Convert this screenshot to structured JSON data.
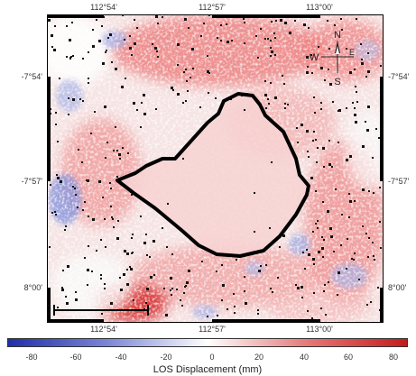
{
  "map": {
    "lon_labels": [
      "112°54'",
      "112°57'",
      "113°00'"
    ],
    "lat_labels": [
      "-7°54'",
      "-7°57'",
      "8°00'"
    ],
    "compass": {
      "n": "N",
      "s": "S",
      "e": "E",
      "w": "W"
    },
    "outline_color": "#000000"
  },
  "colorbar": {
    "title": "LOS Displacement (mm)",
    "ticks": [
      "-80",
      "-60",
      "-40",
      "-20",
      "0",
      "20",
      "40",
      "60",
      "80"
    ],
    "colors": {
      "negative": "#2b3fb8",
      "neutral": "#ffffff",
      "positive": "#d92020"
    }
  }
}
